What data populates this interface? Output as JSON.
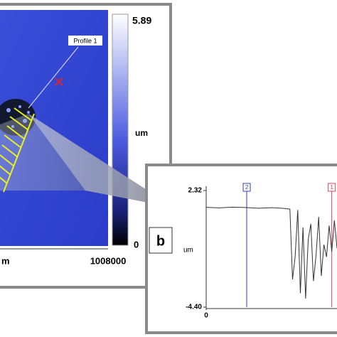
{
  "panel_a": {
    "profile_label": "Profile 1",
    "colorbar": {
      "max": "5.89",
      "unit": "um",
      "min": "0"
    },
    "x_axis": {
      "unit": "m",
      "end": "1008000"
    }
  },
  "chart_data": {
    "type": "line",
    "panel_label": "b",
    "y_label": "um",
    "x": [
      0,
      10,
      20,
      30,
      40,
      50,
      58,
      64,
      66,
      68,
      70,
      72,
      74,
      76,
      78,
      80,
      82,
      84,
      86,
      88,
      90,
      92,
      94,
      96,
      98,
      100
    ],
    "series": [
      {
        "color": "#333333",
        "values": [
          1.35,
          1.32,
          1.36,
          1.34,
          1.3,
          1.33,
          1.3,
          1.25,
          -2.8,
          -1.5,
          1.2,
          -3.6,
          0.2,
          -3.9,
          -0.5,
          0.4,
          -2.9,
          -1.4,
          0.8,
          -2.6,
          -0.8,
          -1.5,
          0.3,
          -1.2,
          0.6,
          -1.0
        ]
      }
    ],
    "xlim": [
      0,
      100
    ],
    "xticks": [
      0
    ],
    "ylim": [
      -4.4,
      2.32
    ],
    "yticks": [
      {
        "value": -4.4,
        "label": "-4.40"
      },
      2.32
    ],
    "cursors": [
      {
        "label": "2",
        "x": 31,
        "color": "#3344aa"
      },
      {
        "label": "1",
        "x": 96,
        "color": "#dd4455"
      }
    ]
  }
}
